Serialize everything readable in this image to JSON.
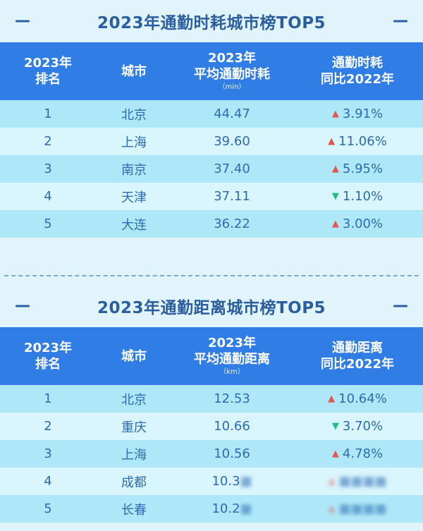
{
  "section1": {
    "title": "2023年通勤时耗城市榜TOP5",
    "header": {
      "rank_line1": "2023年",
      "rank_line2": "排名",
      "city": "城市",
      "value_line1": "2023年",
      "value_line2": "平均通勤时耗",
      "value_unit": "（min）",
      "change_line1": "通勤时耗",
      "change_line2": "同比2022年"
    },
    "rows": [
      {
        "rank": "1",
        "city": "北京",
        "value": "44.47",
        "arrow": "▲",
        "change": "3.91%",
        "trend": "up"
      },
      {
        "rank": "2",
        "city": "上海",
        "value": "39.60",
        "arrow": "▲",
        "change": "11.06%",
        "trend": "up"
      },
      {
        "rank": "3",
        "city": "南京",
        "value": "37.40",
        "arrow": "▲",
        "change": "5.95%",
        "trend": "up"
      },
      {
        "rank": "4",
        "city": "天津",
        "value": "37.11",
        "arrow": "▼",
        "change": "1.10%",
        "trend": "down"
      },
      {
        "rank": "5",
        "city": "大连",
        "value": "36.22",
        "arrow": "▲",
        "change": "3.00%",
        "trend": "up"
      }
    ]
  },
  "section2": {
    "title": "2023年通勤距离城市榜TOP5",
    "header": {
      "rank_line1": "2023年",
      "rank_line2": "排名",
      "city": "城市",
      "value_line1": "2023年",
      "value_line2": "平均通勤距离",
      "value_unit": "（km）",
      "change_line1": "通勤距离",
      "change_line2": "同比2022年"
    },
    "rows": [
      {
        "rank": "1",
        "city": "北京",
        "value": "12.53",
        "arrow": "▲",
        "change": "10.64%",
        "trend": "up"
      },
      {
        "rank": "2",
        "city": "重庆",
        "value": "10.66",
        "arrow": "▼",
        "change": "3.70%",
        "trend": "down"
      },
      {
        "rank": "3",
        "city": "上海",
        "value": "10.56",
        "arrow": "▲",
        "change": "4.78%",
        "trend": "up"
      },
      {
        "rank": "4",
        "city": "成都",
        "value": "10.3",
        "arrow": "▲",
        "change": "",
        "trend": "up"
      },
      {
        "rank": "5",
        "city": "长春",
        "value": "10.2",
        "arrow": "▲",
        "change": "",
        "trend": "up"
      }
    ]
  },
  "colors": {
    "background": "#e2f4fb",
    "header": "#2f7de5",
    "row_odd": "#aee8f8",
    "row_even": "#d9f5fd",
    "title": "#2b5e9f",
    "text": "#2d6bb3",
    "up": "#e0584f",
    "down": "#1fbf8a"
  }
}
